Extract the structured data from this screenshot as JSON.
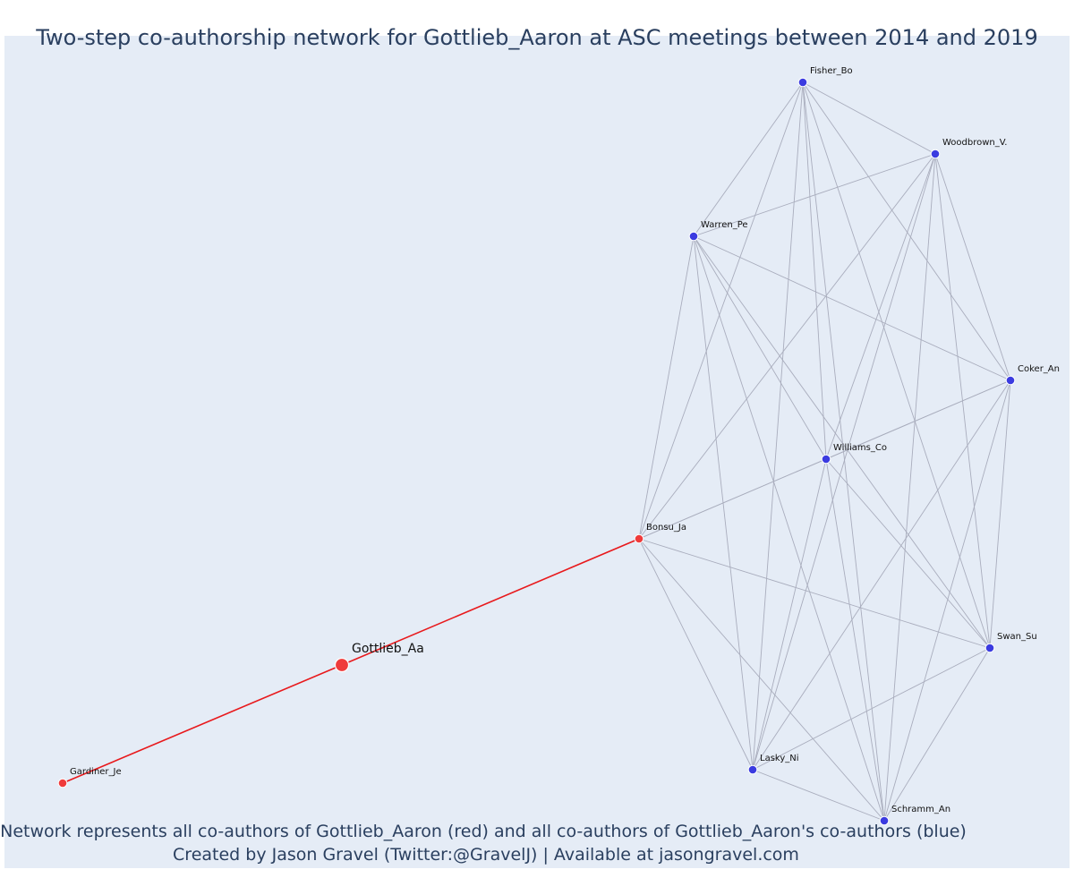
{
  "title": "Two-step co-authorship network for Gottlieb_Aaron at ASC meetings between 2014 and 2019",
  "caption": {
    "line1": "Network represents all co-authors of Gottlieb_Aaron (red) and all co-authors of Gottlieb_Aaron's co-authors (blue)",
    "line2": "Created by Jason Gravel (Twitter:@GravelJ) | Available at jasongravel.com"
  },
  "colors": {
    "background": "#e5ecf6",
    "red_node": "#ef3b3b",
    "blue_node": "#3b3be0",
    "red_edge": "#e8191c",
    "grey_edge": "#a9adbd",
    "text": "#2a3f5f"
  },
  "chart_data": {
    "type": "network",
    "nodes": [
      {
        "id": "Gottlieb_Aa",
        "label": "Gottlieb_Aa",
        "group": "focal"
      },
      {
        "id": "Gardiner_Je",
        "label": "Gardiner_Je",
        "group": "red"
      },
      {
        "id": "Bonsu_Ja",
        "label": "Bonsu_Ja",
        "group": "red"
      },
      {
        "id": "Fisher_Bo",
        "label": "Fisher_Bo",
        "group": "blue"
      },
      {
        "id": "Woodbrown_V.",
        "label": "Woodbrown_V.",
        "group": "blue"
      },
      {
        "id": "Warren_Pe",
        "label": "Warren_Pe",
        "group": "blue"
      },
      {
        "id": "Coker_An",
        "label": "Coker_An",
        "group": "blue"
      },
      {
        "id": "Williams_Co",
        "label": "Williams_Co",
        "group": "blue"
      },
      {
        "id": "Swan_Su",
        "label": "Swan_Su",
        "group": "blue"
      },
      {
        "id": "Lasky_Ni",
        "label": "Lasky_Ni",
        "group": "blue"
      },
      {
        "id": "Schramm_An",
        "label": "Schramm_An",
        "group": "blue"
      }
    ],
    "edges": [
      {
        "source": "Gardiner_Je",
        "target": "Gottlieb_Aa",
        "color": "red"
      },
      {
        "source": "Gottlieb_Aa",
        "target": "Bonsu_Ja",
        "color": "red"
      },
      {
        "source": "Bonsu_Ja",
        "target": "Fisher_Bo",
        "color": "grey"
      },
      {
        "source": "Bonsu_Ja",
        "target": "Woodbrown_V.",
        "color": "grey"
      },
      {
        "source": "Bonsu_Ja",
        "target": "Warren_Pe",
        "color": "grey"
      },
      {
        "source": "Bonsu_Ja",
        "target": "Coker_An",
        "color": "grey"
      },
      {
        "source": "Bonsu_Ja",
        "target": "Williams_Co",
        "color": "grey"
      },
      {
        "source": "Bonsu_Ja",
        "target": "Swan_Su",
        "color": "grey"
      },
      {
        "source": "Bonsu_Ja",
        "target": "Lasky_Ni",
        "color": "grey"
      },
      {
        "source": "Bonsu_Ja",
        "target": "Schramm_An",
        "color": "grey"
      },
      {
        "source": "Fisher_Bo",
        "target": "Woodbrown_V.",
        "color": "grey"
      },
      {
        "source": "Fisher_Bo",
        "target": "Warren_Pe",
        "color": "grey"
      },
      {
        "source": "Fisher_Bo",
        "target": "Coker_An",
        "color": "grey"
      },
      {
        "source": "Fisher_Bo",
        "target": "Williams_Co",
        "color": "grey"
      },
      {
        "source": "Fisher_Bo",
        "target": "Swan_Su",
        "color": "grey"
      },
      {
        "source": "Fisher_Bo",
        "target": "Lasky_Ni",
        "color": "grey"
      },
      {
        "source": "Fisher_Bo",
        "target": "Schramm_An",
        "color": "grey"
      },
      {
        "source": "Woodbrown_V.",
        "target": "Warren_Pe",
        "color": "grey"
      },
      {
        "source": "Woodbrown_V.",
        "target": "Coker_An",
        "color": "grey"
      },
      {
        "source": "Woodbrown_V.",
        "target": "Williams_Co",
        "color": "grey"
      },
      {
        "source": "Woodbrown_V.",
        "target": "Swan_Su",
        "color": "grey"
      },
      {
        "source": "Woodbrown_V.",
        "target": "Lasky_Ni",
        "color": "grey"
      },
      {
        "source": "Woodbrown_V.",
        "target": "Schramm_An",
        "color": "grey"
      },
      {
        "source": "Warren_Pe",
        "target": "Coker_An",
        "color": "grey"
      },
      {
        "source": "Warren_Pe",
        "target": "Williams_Co",
        "color": "grey"
      },
      {
        "source": "Warren_Pe",
        "target": "Swan_Su",
        "color": "grey"
      },
      {
        "source": "Warren_Pe",
        "target": "Lasky_Ni",
        "color": "grey"
      },
      {
        "source": "Warren_Pe",
        "target": "Schramm_An",
        "color": "grey"
      },
      {
        "source": "Coker_An",
        "target": "Williams_Co",
        "color": "grey"
      },
      {
        "source": "Coker_An",
        "target": "Swan_Su",
        "color": "grey"
      },
      {
        "source": "Coker_An",
        "target": "Lasky_Ni",
        "color": "grey"
      },
      {
        "source": "Coker_An",
        "target": "Schramm_An",
        "color": "grey"
      },
      {
        "source": "Williams_Co",
        "target": "Swan_Su",
        "color": "grey"
      },
      {
        "source": "Williams_Co",
        "target": "Lasky_Ni",
        "color": "grey"
      },
      {
        "source": "Williams_Co",
        "target": "Schramm_An",
        "color": "grey"
      },
      {
        "source": "Swan_Su",
        "target": "Lasky_Ni",
        "color": "grey"
      },
      {
        "source": "Swan_Su",
        "target": "Schramm_An",
        "color": "grey"
      },
      {
        "source": "Lasky_Ni",
        "target": "Schramm_An",
        "color": "grey"
      }
    ],
    "grid": false
  }
}
